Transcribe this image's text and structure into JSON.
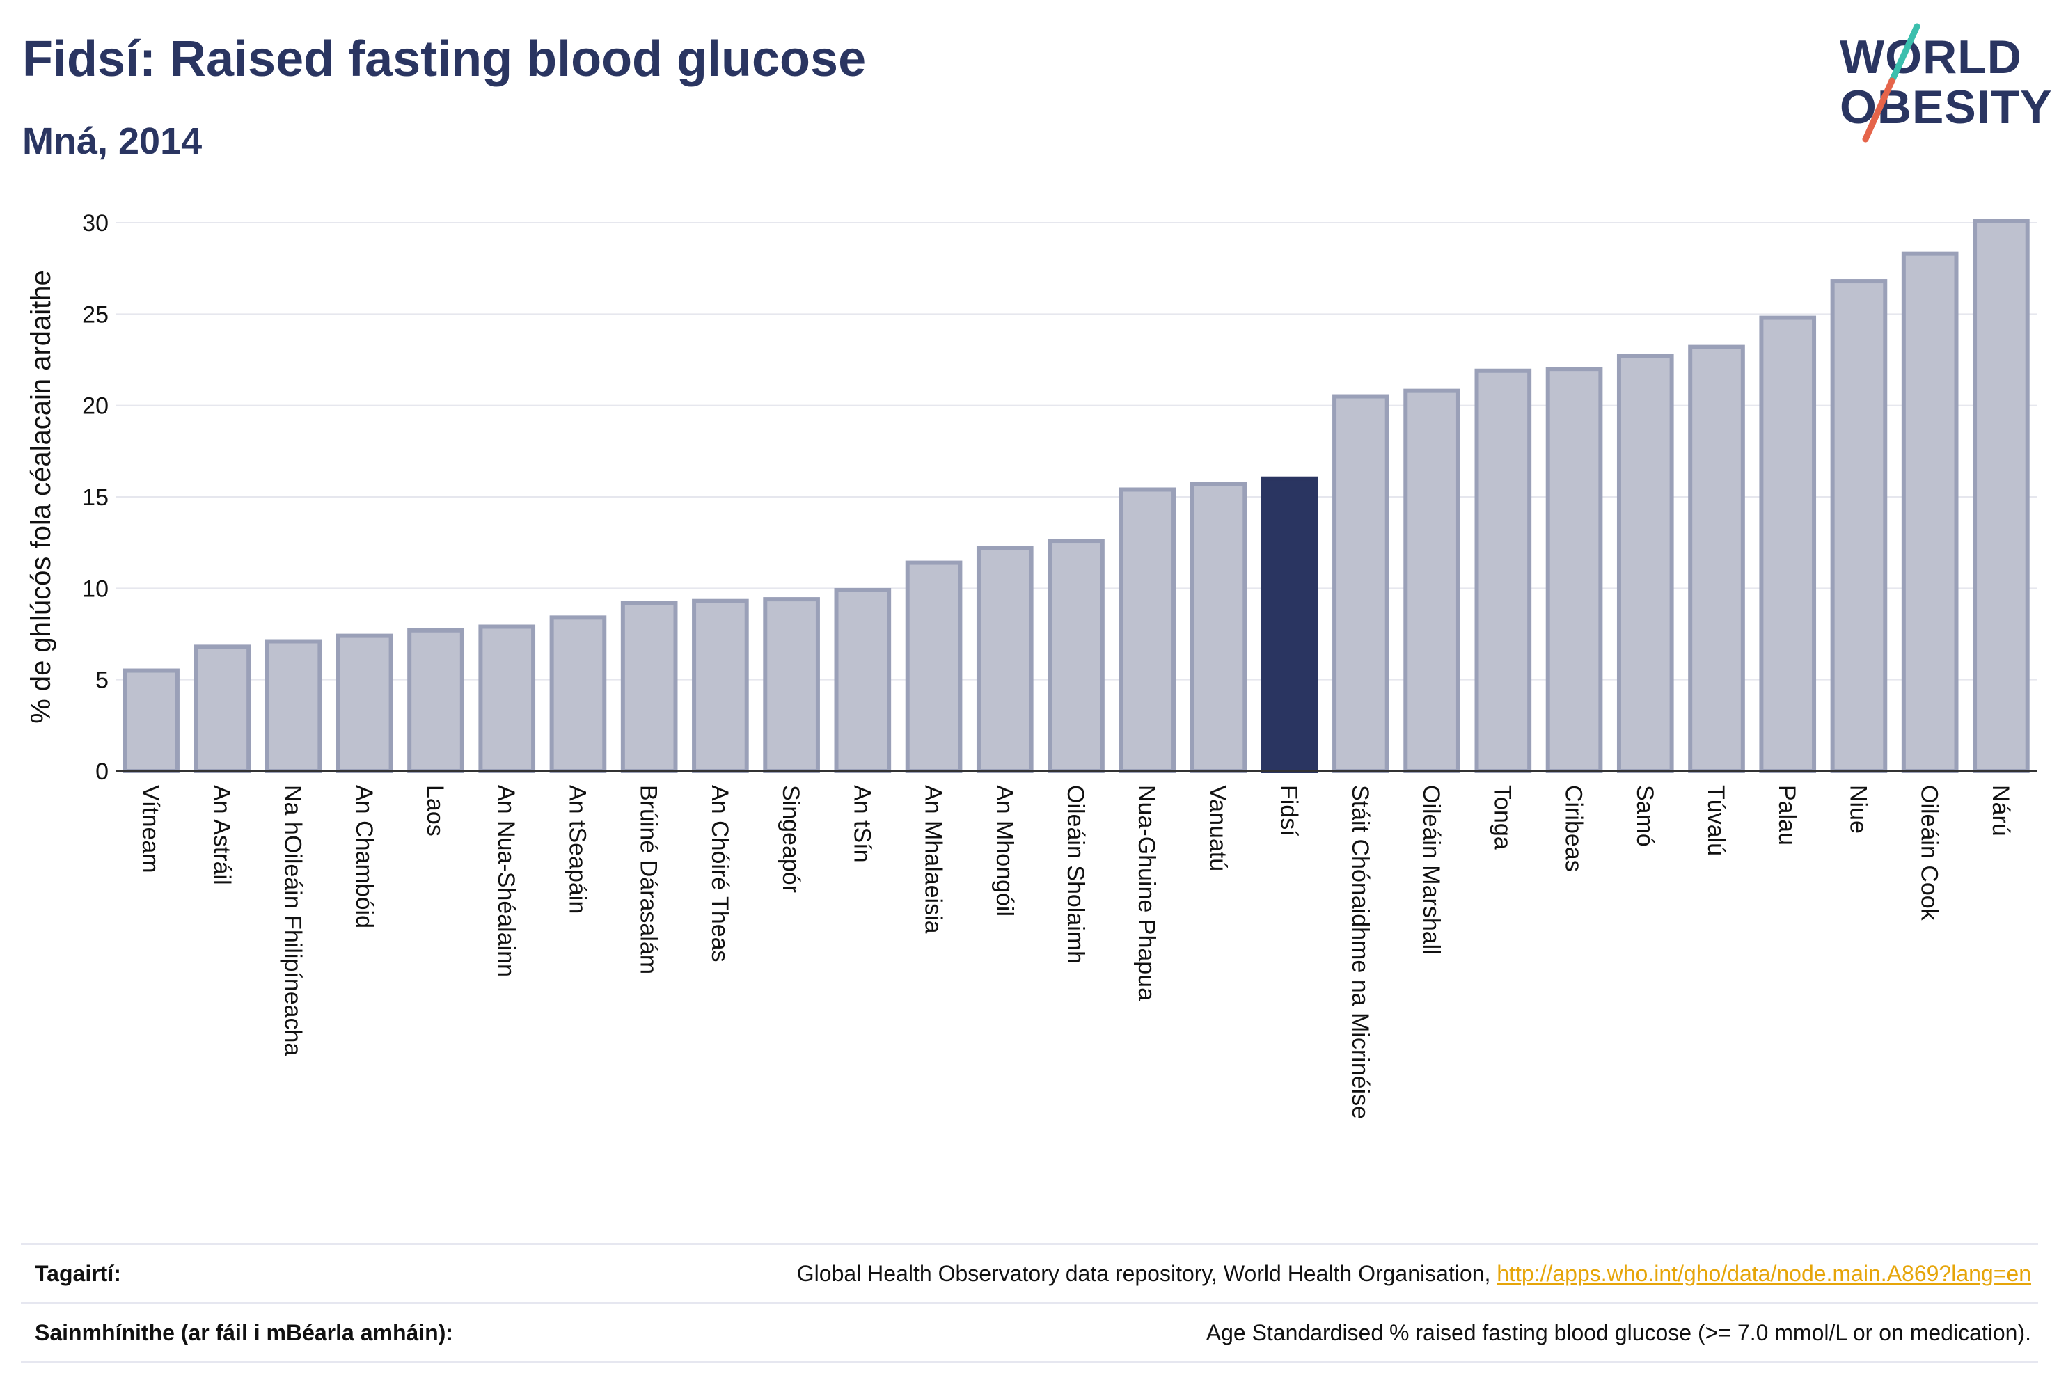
{
  "title": "Fidsí: Raised fasting blood glucose",
  "subtitle": "Mná, 2014",
  "logo": {
    "line1": "WORLD",
    "line2": "OBESITY",
    "accent_colors": [
      "#3bbfad",
      "#e5644a"
    ]
  },
  "colors": {
    "bar_fill": "#bec1cf",
    "bar_stroke": "#9aa0b8",
    "highlight": "#2a3561",
    "grid": "#e6e7ee",
    "text": "#2a3561"
  },
  "chart_data": {
    "type": "bar",
    "ylabel": "% de ghlúcós fola céalacain ardaithe",
    "ylim": [
      0,
      30
    ],
    "yticks": [
      0,
      5,
      10,
      15,
      20,
      25,
      30
    ],
    "highlight_category": "Fidsí",
    "categories": [
      "Vítneam",
      "An Astráil",
      "Na hOileáin Fhilipíneacha",
      "An Chambóid",
      "Laos",
      "An Nua-Shéalainn",
      "An tSeapáin",
      "Brúiné Dárasalám",
      "An Chóiré Theas",
      "Singeapór",
      "An tSín",
      "An Mhalaeisia",
      "An Mhongóil",
      "Oileáin Sholaimh",
      "Nua-Ghuine Phapua",
      "Vanuatú",
      "Fidsí",
      "Stáit Chónaidhme na Micrinéise",
      "Oileáin Marshall",
      "Tonga",
      "Ciribeas",
      "Samó",
      "Túvalú",
      "Palau",
      "Niue",
      "Oileáin Cook",
      "Nárú"
    ],
    "values": [
      5.5,
      6.8,
      7.1,
      7.4,
      7.7,
      7.9,
      8.4,
      9.2,
      9.3,
      9.4,
      9.9,
      11.4,
      12.2,
      12.6,
      15.4,
      15.7,
      16.0,
      20.5,
      20.8,
      21.9,
      22.0,
      22.7,
      23.2,
      24.8,
      26.8,
      28.3,
      30.1
    ]
  },
  "references": {
    "label": "Tagairtí:",
    "text": "Global Health Observatory data repository, World Health Organisation, ",
    "link": "http://apps.who.int/gho/data/node.main.A869?lang=en"
  },
  "definitions": {
    "label": "Sainmhínithe (ar fáil i mBéarla amháin):",
    "text": "Age Standardised % raised fasting blood glucose (>= 7.0 mmol/L or on medication)."
  }
}
